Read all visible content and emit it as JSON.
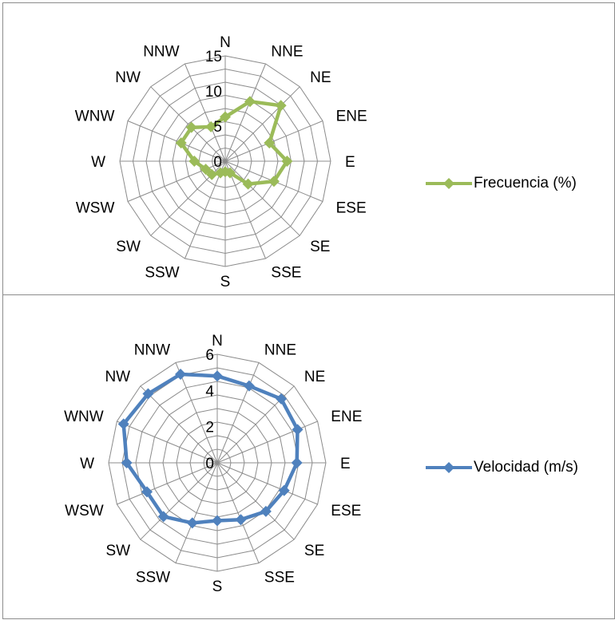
{
  "chart_data": [
    {
      "type": "radar",
      "categories": [
        "N",
        "NNE",
        "NE",
        "ENE",
        "E",
        "ESE",
        "SE",
        "SSE",
        "S",
        "SSW",
        "SW",
        "WSW",
        "W",
        "WNW",
        "NW",
        "NNW"
      ],
      "series": [
        {
          "name": "Frecuencia (%)",
          "color": "#9bbb59",
          "marker": "diamond",
          "values": [
            6.3,
            9.2,
            11.2,
            6.8,
            8.8,
            7.5,
            4.6,
            1.8,
            1.5,
            1.8,
            2.7,
            3.0,
            4.4,
            6.8,
            6.8,
            5.3
          ]
        }
      ],
      "rlim": [
        0,
        15
      ],
      "ticks": [
        "0",
        "5",
        "10",
        "15"
      ],
      "tick_values": [
        0,
        5,
        10,
        15
      ],
      "grid": true,
      "legend_position": "right"
    },
    {
      "type": "radar",
      "categories": [
        "N",
        "NNE",
        "NE",
        "ENE",
        "E",
        "ESE",
        "SE",
        "SSE",
        "S",
        "SSW",
        "SW",
        "WSW",
        "W",
        "WNW",
        "NW",
        "NNW"
      ],
      "series": [
        {
          "name": "Velocidad (m/s)",
          "color": "#4f81bd",
          "marker": "diamond",
          "values": [
            4.8,
            4.6,
            5.0,
            4.8,
            4.4,
            4.0,
            3.8,
            3.4,
            3.2,
            3.6,
            4.2,
            4.2,
            5.0,
            5.6,
            5.4,
            5.3
          ]
        }
      ],
      "rlim": [
        0,
        6
      ],
      "ticks": [
        "0",
        "2",
        "4",
        "6"
      ],
      "tick_values": [
        0,
        2,
        4,
        6
      ],
      "grid": true,
      "legend_position": "right"
    }
  ]
}
